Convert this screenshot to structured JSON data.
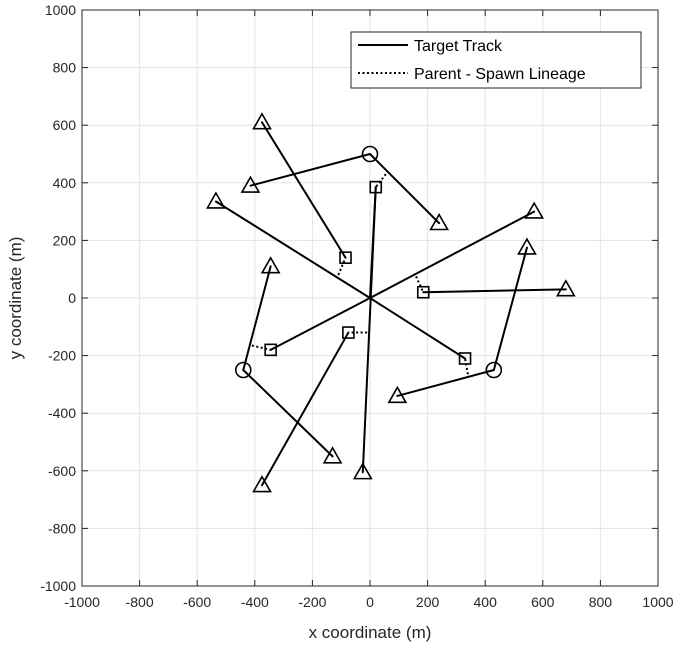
{
  "chart_data": {
    "type": "line",
    "title": "",
    "xlabel": "x coordinate (m)",
    "ylabel": "y coordinate (m)",
    "xlim": [
      -1000,
      1000
    ],
    "ylim": [
      -1000,
      1000
    ],
    "xticks": [
      -1000,
      -800,
      -600,
      -400,
      -200,
      0,
      200,
      400,
      600,
      800,
      1000
    ],
    "yticks": [
      -1000,
      -800,
      -600,
      -400,
      -200,
      0,
      200,
      400,
      600,
      800,
      1000
    ],
    "grid": true,
    "legend": {
      "location": "top-right",
      "entries": [
        {
          "label": "Target Track",
          "style": "solid"
        },
        {
          "label": "Parent - Spawn Lineage",
          "style": "dotted"
        }
      ]
    },
    "series": [
      {
        "name": "Target Track",
        "style": "solid",
        "color": "#000000",
        "segments": [
          [
            [
              0,
              0
            ],
            [
              570,
              300
            ]
          ],
          [
            [
              0,
              0
            ],
            [
              -535,
              335
            ]
          ],
          [
            [
              0,
              0
            ],
            [
              20,
              385
            ]
          ],
          [
            [
              0,
              0
            ],
            [
              330,
              -210
            ]
          ],
          [
            [
              0,
              0
            ],
            [
              -345,
              -180
            ]
          ],
          [
            [
              -75,
              -120
            ],
            [
              -375,
              -650
            ]
          ],
          [
            [
              20,
              385
            ],
            [
              -25,
              -605
            ]
          ],
          [
            [
              -85,
              140
            ],
            [
              -375,
              610
            ]
          ],
          [
            [
              185,
              20
            ],
            [
              680,
              30
            ]
          ],
          [
            [
              0,
              500
            ],
            [
              240,
              260
            ]
          ],
          [
            [
              0,
              500
            ],
            [
              -415,
              390
            ]
          ],
          [
            [
              430,
              -250
            ],
            [
              545,
              175
            ]
          ],
          [
            [
              430,
              -250
            ],
            [
              95,
              -340
            ]
          ],
          [
            [
              -440,
              -250
            ],
            [
              -130,
              -550
            ]
          ],
          [
            [
              -440,
              -250
            ],
            [
              -345,
              110
            ]
          ]
        ]
      },
      {
        "name": "Parent - Spawn Lineage",
        "style": "dotted",
        "color": "#000000",
        "segments": [
          [
            [
              -110,
              80
            ],
            [
              -85,
              140
            ]
          ],
          [
            [
              55,
              430
            ],
            [
              20,
              385
            ]
          ],
          [
            [
              160,
              75
            ],
            [
              185,
              20
            ]
          ],
          [
            [
              340,
              -265
            ],
            [
              330,
              -210
            ]
          ],
          [
            [
              -410,
              -165
            ],
            [
              -345,
              -180
            ]
          ],
          [
            [
              -10,
              -120
            ],
            [
              -75,
              -120
            ]
          ]
        ]
      }
    ],
    "markers": {
      "triangles": [
        [
          -375,
          610
        ],
        [
          -415,
          390
        ],
        [
          -535,
          335
        ],
        [
          240,
          260
        ],
        [
          570,
          300
        ],
        [
          545,
          175
        ],
        [
          -345,
          110
        ],
        [
          680,
          30
        ],
        [
          -375,
          -650
        ],
        [
          -130,
          -550
        ],
        [
          -25,
          -605
        ],
        [
          95,
          -340
        ]
      ],
      "circles": [
        [
          0,
          500
        ],
        [
          -440,
          -250
        ],
        [
          430,
          -250
        ]
      ],
      "squares": [
        [
          20,
          385
        ],
        [
          -85,
          140
        ],
        [
          185,
          20
        ],
        [
          -75,
          -120
        ],
        [
          -345,
          -180
        ],
        [
          330,
          -210
        ]
      ]
    }
  }
}
